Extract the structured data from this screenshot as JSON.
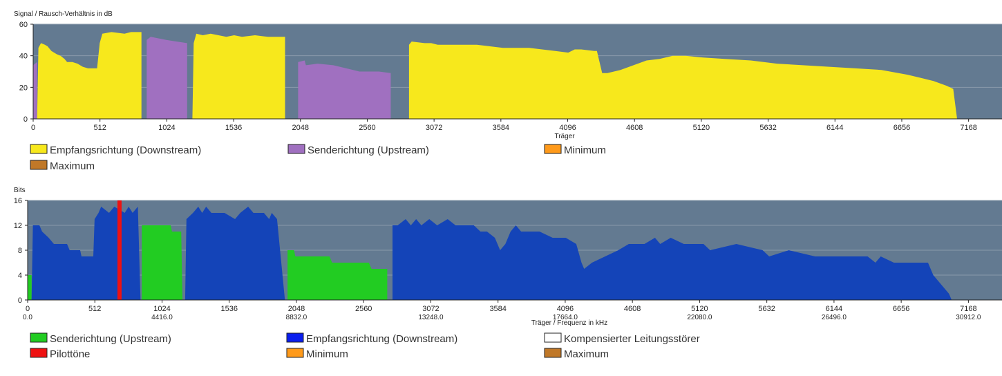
{
  "chart_data": [
    {
      "type": "area",
      "title": "",
      "ylabel": "Signal / Rausch-Verhältnis in dB",
      "xlabel": "Träger",
      "xlim": [
        0,
        7424
      ],
      "ylim": [
        0,
        60
      ],
      "grid": true,
      "x_ticks": [
        "0",
        "512",
        "1024",
        "1536",
        "2048",
        "2560",
        "3072",
        "3584",
        "4096",
        "4608",
        "5120",
        "5632",
        "6144",
        "6656",
        "7168"
      ],
      "x_tick_values": [
        0,
        512,
        1024,
        1536,
        2048,
        2560,
        3072,
        3584,
        4096,
        4608,
        5120,
        5632,
        6144,
        6656,
        7168
      ],
      "y_ticks": [
        "0",
        "20",
        "40",
        "60"
      ],
      "y_tick_values": [
        0,
        20,
        40,
        60
      ],
      "legend": [
        {
          "label": "Empfangsrichtung (Downstream)",
          "color": "#f7e81c"
        },
        {
          "label": "Senderichtung (Upstream)",
          "color": "#a070c0"
        },
        {
          "label": "Minimum",
          "color": "#ff9a1a"
        },
        {
          "label": "Maximum",
          "color": "#c07828"
        }
      ],
      "series": [
        {
          "name": "Senderichtung (Upstream)",
          "color": "#a070c0",
          "segments": [
            [
              [
                0,
                0
              ],
              [
                0,
                34
              ],
              [
                30,
                36
              ],
              [
                30,
                0
              ]
            ],
            [
              [
                870,
                0
              ],
              [
                870,
                50
              ],
              [
                900,
                52
              ],
              [
                960,
                51
              ],
              [
                1020,
                50
              ],
              [
                1100,
                49
              ],
              [
                1180,
                48
              ],
              [
                1180,
                0
              ]
            ],
            [
              [
                2030,
                0
              ],
              [
                2030,
                36
              ],
              [
                2080,
                37
              ],
              [
                2090,
                34
              ],
              [
                2180,
                35
              ],
              [
                2300,
                34
              ],
              [
                2400,
                32
              ],
              [
                2500,
                30
              ],
              [
                2650,
                30
              ],
              [
                2740,
                29
              ],
              [
                2740,
                0
              ]
            ]
          ]
        },
        {
          "name": "Empfangsrichtung (Downstream)",
          "color": "#f7e81c",
          "segments": [
            [
              [
                30,
                0
              ],
              [
                40,
                45
              ],
              [
                60,
                48
              ],
              [
                90,
                47
              ],
              [
                110,
                46
              ],
              [
                140,
                43
              ],
              [
                180,
                41
              ],
              [
                210,
                40
              ],
              [
                240,
                38
              ],
              [
                260,
                36
              ],
              [
                300,
                36
              ],
              [
                340,
                35
              ],
              [
                380,
                33
              ],
              [
                420,
                32
              ],
              [
                480,
                32
              ],
              [
                490,
                32
              ],
              [
                510,
                48
              ],
              [
                530,
                54
              ],
              [
                600,
                55
              ],
              [
                700,
                54
              ],
              [
                750,
                55
              ],
              [
                830,
                55
              ],
              [
                830,
                0
              ]
            ],
            [
              [
                1220,
                0
              ],
              [
                1230,
                48
              ],
              [
                1250,
                54
              ],
              [
                1300,
                53
              ],
              [
                1360,
                54
              ],
              [
                1420,
                53
              ],
              [
                1480,
                52
              ],
              [
                1540,
                53
              ],
              [
                1600,
                52
              ],
              [
                1700,
                53
              ],
              [
                1800,
                52
              ],
              [
                1930,
                52
              ],
              [
                1930,
                0
              ]
            ],
            [
              [
                2880,
                0
              ],
              [
                2880,
                47
              ],
              [
                2900,
                49
              ],
              [
                3000,
                48
              ],
              [
                3050,
                48
              ],
              [
                3100,
                47
              ],
              [
                3200,
                47
              ],
              [
                3400,
                47
              ],
              [
                3600,
                45
              ],
              [
                3800,
                45
              ],
              [
                4000,
                43
              ],
              [
                4100,
                42
              ],
              [
                4150,
                44
              ],
              [
                4200,
                44
              ],
              [
                4300,
                43
              ],
              [
                4320,
                43
              ],
              [
                4360,
                29
              ],
              [
                4400,
                29
              ],
              [
                4500,
                31
              ],
              [
                4600,
                34
              ],
              [
                4700,
                37
              ],
              [
                4800,
                38
              ],
              [
                4900,
                40
              ],
              [
                5000,
                40
              ],
              [
                5120,
                39
              ],
              [
                5300,
                38
              ],
              [
                5500,
                37
              ],
              [
                5700,
                35
              ],
              [
                5900,
                34
              ],
              [
                6100,
                33
              ],
              [
                6300,
                32
              ],
              [
                6500,
                31
              ],
              [
                6700,
                28
              ],
              [
                6800,
                26
              ],
              [
                6900,
                24
              ],
              [
                7000,
                21
              ],
              [
                7050,
                19
              ],
              [
                7080,
                0
              ]
            ]
          ]
        }
      ]
    },
    {
      "type": "area",
      "title": "",
      "ylabel": "Bits",
      "xlabel": "Träger / Frequenz in kHz",
      "xlim": [
        0,
        7424
      ],
      "ylim": [
        0,
        16
      ],
      "grid": true,
      "x_ticks": [
        "0",
        "512",
        "1024",
        "1536",
        "2048",
        "2560",
        "3072",
        "3584",
        "4096",
        "4608",
        "5120",
        "5632",
        "6144",
        "6656",
        "7168"
      ],
      "x_tick_values": [
        0,
        512,
        1024,
        1536,
        2048,
        2560,
        3072,
        3584,
        4096,
        4608,
        5120,
        5632,
        6144,
        6656,
        7168
      ],
      "x_ticks_frequency": [
        "0.0",
        "4416.0",
        "8832.0",
        "13248.0",
        "17664.0",
        "22080.0",
        "26496.0",
        "30912.0"
      ],
      "x_ticks_frequency_values": [
        0,
        1024,
        2048,
        3072,
        4096,
        5120,
        6144,
        7168
      ],
      "y_ticks": [
        "0",
        "4",
        "8",
        "12",
        "16"
      ],
      "y_tick_values": [
        0,
        4,
        8,
        12,
        16
      ],
      "legend": [
        {
          "label": "Senderichtung (Upstream)",
          "color": "#22cc22"
        },
        {
          "label": "Empfangsrichtung (Downstream)",
          "color": "#0a1eee"
        },
        {
          "label": "Kompensierter Leitungsstörer",
          "color": "#ffffff"
        },
        {
          "label": "Pilottöne",
          "color": "#ee1111"
        },
        {
          "label": "Minimum",
          "color": "#ff9a1a"
        },
        {
          "label": "Maximum",
          "color": "#c07828"
        }
      ],
      "pilot_tone_x": [
        700
      ],
      "series": [
        {
          "name": "Senderichtung (Upstream)",
          "color": "#22cc22",
          "segments": [
            [
              [
                0,
                0
              ],
              [
                0,
                4
              ],
              [
                30,
                4
              ],
              [
                30,
                0
              ]
            ],
            [
              [
                870,
                0
              ],
              [
                870,
                12
              ],
              [
                1090,
                12
              ],
              [
                1100,
                11
              ],
              [
                1170,
                11
              ],
              [
                1180,
                0
              ]
            ],
            [
              [
                1980,
                0
              ],
              [
                1980,
                8
              ],
              [
                2030,
                8
              ],
              [
                2040,
                7
              ],
              [
                2300,
                7
              ],
              [
                2320,
                6
              ],
              [
                2600,
                6
              ],
              [
                2620,
                5
              ],
              [
                2740,
                5
              ],
              [
                2740,
                0
              ]
            ]
          ]
        },
        {
          "name": "Empfangsrichtung (Downstream)",
          "color": "#1444b8",
          "segments": [
            [
              [
                30,
                0
              ],
              [
                40,
                12
              ],
              [
                90,
                12
              ],
              [
                110,
                11
              ],
              [
                160,
                10
              ],
              [
                200,
                9
              ],
              [
                300,
                9
              ],
              [
                320,
                8
              ],
              [
                400,
                8
              ],
              [
                410,
                7
              ],
              [
                500,
                7
              ],
              [
                510,
                13
              ],
              [
                540,
                14
              ],
              [
                560,
                15
              ],
              [
                620,
                14
              ],
              [
                660,
                15
              ],
              [
                740,
                14
              ],
              [
                770,
                15
              ],
              [
                800,
                14
              ],
              [
                840,
                15
              ],
              [
                860,
                0
              ]
            ],
            [
              [
                1200,
                0
              ],
              [
                1210,
                13
              ],
              [
                1260,
                14
              ],
              [
                1300,
                15
              ],
              [
                1330,
                14
              ],
              [
                1360,
                15
              ],
              [
                1400,
                14
              ],
              [
                1500,
                14
              ],
              [
                1580,
                13
              ],
              [
                1620,
                14
              ],
              [
                1680,
                15
              ],
              [
                1720,
                14
              ],
              [
                1800,
                14
              ],
              [
                1840,
                13
              ],
              [
                1860,
                14
              ],
              [
                1900,
                13
              ],
              [
                1960,
                0
              ]
            ],
            [
              [
                2780,
                0
              ],
              [
                2780,
                12
              ],
              [
                2820,
                12
              ],
              [
                2880,
                13
              ],
              [
                2920,
                12
              ],
              [
                2960,
                13
              ],
              [
                3000,
                12
              ],
              [
                3060,
                13
              ],
              [
                3120,
                12
              ],
              [
                3200,
                13
              ],
              [
                3260,
                12
              ],
              [
                3400,
                12
              ],
              [
                3450,
                11
              ],
              [
                3500,
                11
              ],
              [
                3560,
                10
              ],
              [
                3600,
                8
              ],
              [
                3640,
                9
              ],
              [
                3680,
                11
              ],
              [
                3720,
                12
              ],
              [
                3760,
                11
              ],
              [
                3800,
                11
              ],
              [
                3900,
                11
              ],
              [
                4000,
                10
              ],
              [
                4100,
                10
              ],
              [
                4180,
                9
              ],
              [
                4220,
                6
              ],
              [
                4240,
                5
              ],
              [
                4300,
                6
              ],
              [
                4400,
                7
              ],
              [
                4500,
                8
              ],
              [
                4580,
                9
              ],
              [
                4700,
                9
              ],
              [
                4780,
                10
              ],
              [
                4820,
                9
              ],
              [
                4900,
                10
              ],
              [
                5000,
                9
              ],
              [
                5150,
                9
              ],
              [
                5200,
                8
              ],
              [
                5400,
                9
              ],
              [
                5600,
                8
              ],
              [
                5650,
                7
              ],
              [
                5800,
                8
              ],
              [
                6000,
                7
              ],
              [
                6200,
                7
              ],
              [
                6400,
                7
              ],
              [
                6460,
                6
              ],
              [
                6500,
                7
              ],
              [
                6600,
                6
              ],
              [
                6700,
                6
              ],
              [
                6860,
                6
              ],
              [
                6900,
                4
              ],
              [
                6940,
                3
              ],
              [
                6980,
                2
              ],
              [
                7020,
                1
              ],
              [
                7040,
                0
              ]
            ]
          ]
        }
      ]
    }
  ]
}
